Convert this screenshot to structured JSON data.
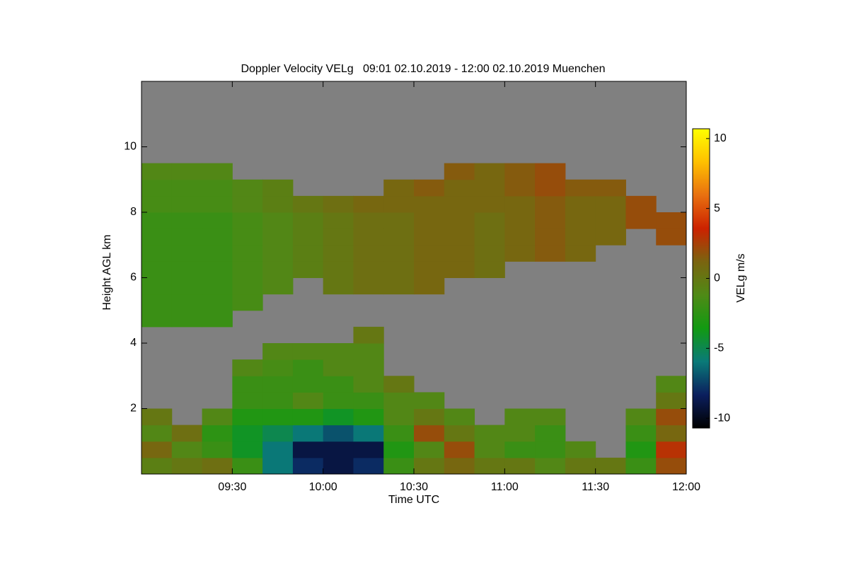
{
  "chart_data": {
    "type": "heatmap",
    "title": "Doppler Velocity VELg   09:01 02.10.2019 - 12:00 02.10.2019 Muenchen",
    "x_label": "Time UTC",
    "y_label": "Height AGL km",
    "colorbar_label": "VELg m/s",
    "xlim": [
      0,
      180
    ],
    "ylim": [
      0,
      12
    ],
    "xticks": [
      {
        "value": 30,
        "label": "09:30"
      },
      {
        "value": 60,
        "label": "10:00"
      },
      {
        "value": 90,
        "label": "10:30"
      },
      {
        "value": 120,
        "label": "11:00"
      },
      {
        "value": 150,
        "label": "11:30"
      },
      {
        "value": 180,
        "label": "12:00"
      }
    ],
    "yticks": [
      2,
      4,
      6,
      8,
      10
    ],
    "clim": [
      -10.7,
      10.7
    ],
    "cticks": [
      10,
      5,
      0,
      -5,
      -10
    ],
    "colorscale": [
      "#000000",
      "#0b1f5e",
      "#0a7a78",
      "#129a12",
      "#4f8a16",
      "#7a6410",
      "#cc2200",
      "#e87010",
      "#ffc000",
      "#ffff00"
    ],
    "background_color": "#808080",
    "x_bins": [
      0,
      10,
      20,
      30,
      40,
      50,
      60,
      70,
      80,
      90,
      100,
      110,
      120,
      130,
      140,
      150,
      160,
      170,
      180
    ],
    "y_bins": [
      0,
      0.5,
      1,
      1.5,
      2,
      2.5,
      3,
      3.5,
      4,
      4.5,
      5,
      5.5,
      6,
      6.5,
      7,
      7.5,
      8,
      8.5,
      9,
      9.5,
      10,
      10.5,
      11,
      11.5,
      12
    ],
    "values": [
      [
        -0.5,
        0,
        0.5,
        -2,
        -6,
        -8,
        -9,
        -8,
        -2,
        0,
        1,
        0,
        0,
        -1,
        0,
        0,
        -2,
        2
      ],
      [
        1,
        -1,
        -2,
        -4,
        -6,
        -9,
        -9,
        -9,
        -3,
        -1,
        2,
        -1,
        -2,
        -2,
        -1,
        null,
        -3,
        3
      ],
      [
        -1,
        0.5,
        -2.5,
        -4,
        -5,
        -6,
        -7,
        -6,
        -2,
        2,
        0,
        -1,
        -1,
        -2,
        null,
        null,
        -2,
        1
      ],
      [
        0,
        null,
        -1,
        -3,
        -3,
        -3,
        -4,
        -3,
        -1,
        0,
        -1,
        null,
        -1,
        -1,
        null,
        null,
        -1,
        2
      ],
      [
        null,
        null,
        null,
        -2,
        -2,
        -1,
        -2,
        -2,
        -1,
        -1,
        null,
        null,
        null,
        null,
        null,
        null,
        null,
        0
      ],
      [
        null,
        null,
        null,
        -2,
        -2,
        -2,
        -2,
        -1,
        0,
        null,
        null,
        null,
        null,
        null,
        null,
        null,
        null,
        -1
      ],
      [
        null,
        null,
        null,
        -1,
        -1.5,
        -2,
        -1,
        -1,
        null,
        null,
        null,
        null,
        null,
        null,
        null,
        null,
        null,
        null
      ],
      [
        null,
        null,
        null,
        null,
        -1,
        -1,
        -1,
        -1,
        null,
        null,
        null,
        null,
        null,
        null,
        null,
        null,
        null,
        null
      ],
      [
        null,
        null,
        null,
        null,
        null,
        null,
        null,
        0,
        null,
        null,
        null,
        null,
        null,
        null,
        null,
        null,
        null,
        null
      ],
      [
        -2,
        -2,
        -2,
        null,
        null,
        null,
        null,
        null,
        null,
        null,
        null,
        null,
        null,
        null,
        null,
        null,
        null,
        null
      ],
      [
        -2,
        -2,
        -2,
        -1.5,
        null,
        null,
        null,
        null,
        null,
        null,
        null,
        null,
        null,
        null,
        null,
        null,
        null,
        null
      ],
      [
        -2,
        -2,
        -2,
        -1.5,
        -1,
        null,
        0,
        0.5,
        0.5,
        1,
        null,
        null,
        null,
        null,
        null,
        null,
        null,
        null
      ],
      [
        -2,
        -2,
        -2,
        -1.5,
        -1,
        -0.5,
        0,
        0.5,
        0.5,
        1,
        1,
        0.5,
        null,
        null,
        null,
        null,
        null,
        null
      ],
      [
        -2,
        -2,
        -2,
        -1.5,
        -1,
        -0.5,
        0,
        0.5,
        0.5,
        1,
        1,
        0.5,
        1,
        1.5,
        1,
        null,
        null,
        null
      ],
      [
        -2,
        -2,
        -2,
        -1.5,
        -1,
        -0.5,
        0,
        0.5,
        0.5,
        1,
        1,
        0.5,
        1,
        1.5,
        1,
        1,
        null,
        2
      ],
      [
        -2,
        -2,
        -2,
        -1.5,
        -1,
        -0.5,
        0,
        0.5,
        0.5,
        1,
        1,
        0.5,
        1,
        1.5,
        1,
        1,
        2,
        2
      ],
      [
        -1.5,
        -1.5,
        -1.5,
        -1,
        -0.5,
        0,
        0.5,
        1,
        1,
        1,
        1,
        1,
        1,
        1.5,
        1,
        1,
        2,
        null
      ],
      [
        -1.5,
        -1.5,
        -1.5,
        -1,
        -0.5,
        null,
        null,
        null,
        1,
        1.5,
        1,
        1,
        1.5,
        2,
        1.5,
        1.5,
        null,
        null
      ],
      [
        -1,
        -1,
        -1,
        null,
        null,
        null,
        null,
        null,
        null,
        null,
        1.5,
        1,
        1.5,
        2,
        null,
        null,
        null,
        null
      ],
      [
        null,
        null,
        null,
        null,
        null,
        null,
        null,
        null,
        null,
        null,
        null,
        null,
        null,
        null,
        null,
        null,
        null,
        null
      ],
      [
        null,
        null,
        null,
        null,
        null,
        null,
        null,
        null,
        null,
        null,
        null,
        null,
        null,
        null,
        null,
        null,
        null,
        null
      ],
      [
        null,
        null,
        null,
        null,
        null,
        null,
        null,
        null,
        null,
        null,
        null,
        null,
        null,
        null,
        null,
        null,
        null,
        null
      ],
      [
        null,
        null,
        null,
        null,
        null,
        null,
        null,
        null,
        null,
        null,
        null,
        null,
        null,
        null,
        null,
        null,
        null,
        null
      ],
      [
        null,
        null,
        null,
        null,
        null,
        null,
        null,
        null,
        null,
        null,
        null,
        null,
        null,
        null,
        null,
        null,
        null,
        null
      ]
    ]
  }
}
